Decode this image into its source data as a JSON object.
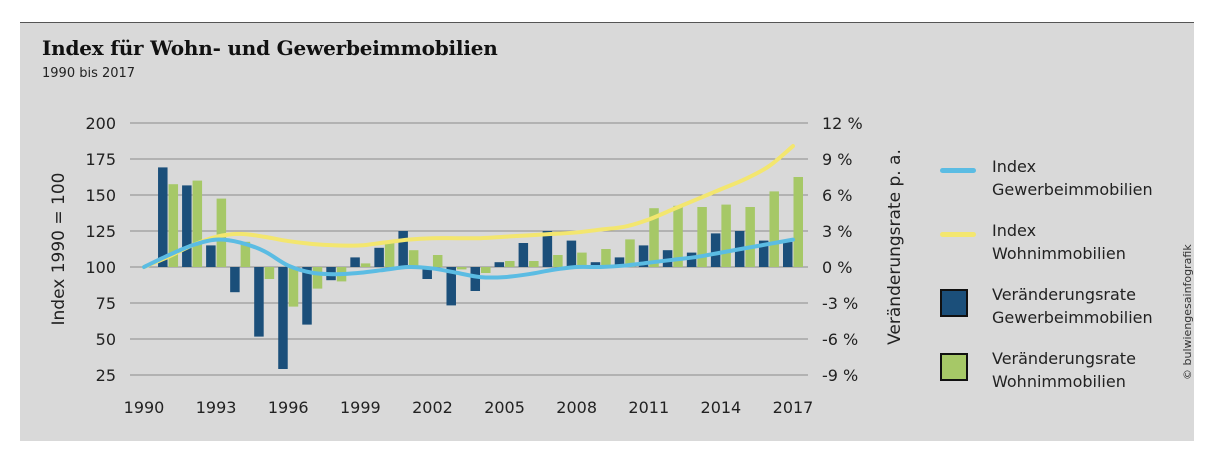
{
  "title": "Index für Wohn- und Gewerbeimmobilien",
  "subtitle": "1990 bis 2017",
  "copyright": "© bulwiengesainfografik",
  "colors": {
    "index_gewerbe": "#5bbce3",
    "index_wohn": "#f3e66f",
    "rate_gewerbe": "#1b4f7a",
    "rate_wohn": "#a6c867",
    "background": "#d9d9d9",
    "grid": "#8c8c8c"
  },
  "legend": [
    {
      "label_line1": "Index",
      "label_line2": "Gewerbeimmobilien",
      "kind": "line",
      "color": "#5bbce3"
    },
    {
      "label_line1": "Index",
      "label_line2": "Wohnimmobilien",
      "kind": "line",
      "color": "#f3e66f"
    },
    {
      "label_line1": "Veränderungsrate",
      "label_line2": "Gewerbeimmobilien",
      "kind": "box",
      "color": "#1b4f7a"
    },
    {
      "label_line1": "Veränderungsrate",
      "label_line2": "Wohnimmobilien",
      "kind": "box",
      "color": "#a6c867"
    }
  ],
  "chart_data": {
    "type": "bar",
    "ylabel_left": "Index 1990 = 100",
    "ylabel_right": "Veränderungsrate p. a.",
    "ylim_left": [
      25,
      200
    ],
    "yticks_left": [
      25,
      50,
      75,
      100,
      125,
      150,
      175,
      200
    ],
    "ylim_right": [
      -9,
      12
    ],
    "yticks_right": [
      "-9 %",
      "-6 %",
      "-3 %",
      "0 %",
      "3 %",
      "6 %",
      "9 %",
      "12 %"
    ],
    "xticks": [
      "1990",
      "1993",
      "1996",
      "1999",
      "2002",
      "2005",
      "2008",
      "2011",
      "2014",
      "2017"
    ],
    "grid": true,
    "legend_position": "right",
    "years": [
      1990,
      1991,
      1992,
      1993,
      1994,
      1995,
      1996,
      1997,
      1998,
      1999,
      2000,
      2001,
      2002,
      2003,
      2004,
      2005,
      2006,
      2007,
      2008,
      2009,
      2010,
      2011,
      2012,
      2013,
      2014,
      2015,
      2016,
      2017
    ],
    "series": [
      {
        "name": "Veränderungsrate Gewerbeimmobilien",
        "kind": "bar",
        "axis": "right",
        "values": [
          null,
          8.3,
          6.8,
          1.8,
          -2.1,
          -5.8,
          -8.5,
          -4.8,
          -1.1,
          0.8,
          1.6,
          3.0,
          -1.0,
          -3.2,
          -2.0,
          0.4,
          2.0,
          3.0,
          2.2,
          0.4,
          0.8,
          1.8,
          1.4,
          1.2,
          2.8,
          3.0,
          2.2,
          2.1
        ]
      },
      {
        "name": "Veränderungsrate Wohnimmobilien",
        "kind": "bar",
        "axis": "right",
        "values": [
          null,
          6.9,
          7.2,
          5.7,
          2.1,
          -1.0,
          -3.3,
          -1.8,
          -1.2,
          0.3,
          2.0,
          1.4,
          1.0,
          -0.2,
          -0.5,
          0.5,
          0.5,
          1.0,
          1.2,
          1.5,
          2.3,
          4.9,
          5.1,
          5.0,
          5.2,
          5.0,
          6.3,
          7.5
        ]
      },
      {
        "name": "Index Gewerbeimmobilien",
        "kind": "line",
        "axis": "left",
        "values": [
          100,
          108,
          115,
          119,
          117,
          111,
          101,
          96,
          95,
          96,
          98,
          100,
          99,
          96,
          93,
          93,
          95,
          98,
          100,
          100,
          101,
          103,
          105,
          107,
          110,
          113,
          116,
          119
        ]
      },
      {
        "name": "Index Wohnimmobilien",
        "kind": "line",
        "axis": "left",
        "values": [
          100,
          107,
          115,
          121,
          123,
          121,
          118,
          116,
          115,
          115,
          117,
          119,
          120,
          120,
          120,
          121,
          122,
          123,
          124,
          126,
          128,
          133,
          140,
          147,
          154,
          161,
          170,
          184
        ]
      }
    ]
  }
}
